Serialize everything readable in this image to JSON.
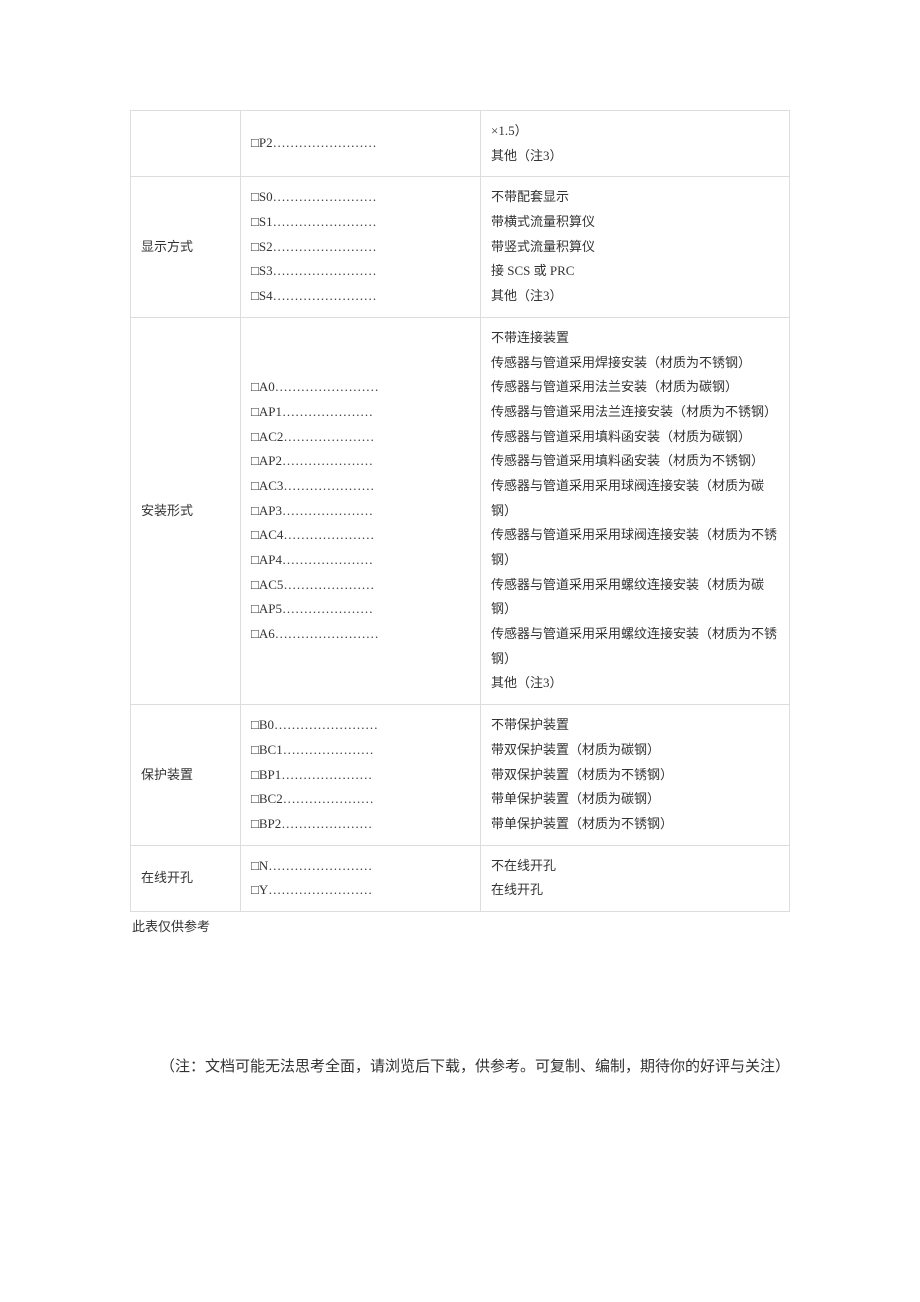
{
  "colors": {
    "border": "#dddddd",
    "text": "#333333",
    "background": "#ffffff"
  },
  "rows": [
    {
      "label": "",
      "codes": [
        "□P2……………………"
      ],
      "desc": [
        "×1.5）",
        "其他（注3）"
      ]
    },
    {
      "label": "显示方式",
      "codes": [
        "□S0……………………",
        "□S1……………………",
        "□S2……………………",
        "□S3……………………",
        "□S4……………………"
      ],
      "desc": [
        "不带配套显示",
        "带横式流量积算仪",
        "带竖式流量积算仪",
        "接 SCS 或 PRC",
        "其他（注3）"
      ]
    },
    {
      "label": "安装形式",
      "codes": [
        "□A0……………………",
        "□AP1…………………",
        "□AC2…………………",
        "□AP2…………………",
        "□AC3…………………",
        "□AP3…………………",
        "□AC4…………………",
        "□AP4…………………",
        "□AC5…………………",
        "□AP5…………………",
        "□A6……………………"
      ],
      "desc": [
        "不带连接装置",
        "传感器与管道采用焊接安装（材质为不锈钢）",
        "传感器与管道采用法兰安装（材质为碳钢）",
        "传感器与管道采用法兰连接安装（材质为不锈钢）",
        "传感器与管道采用填料函安装（材质为碳钢）",
        "传感器与管道采用填料函安装（材质为不锈钢）",
        "传感器与管道采用采用球阀连接安装（材质为碳钢）",
        "传感器与管道采用采用球阀连接安装（材质为不锈钢）",
        "传感器与管道采用采用螺纹连接安装（材质为碳钢）",
        "传感器与管道采用采用螺纹连接安装（材质为不锈钢）",
        "其他（注3）"
      ]
    },
    {
      "label": "保护装置",
      "codes": [
        "□B0……………………",
        "□BC1…………………",
        "□BP1…………………",
        "□BC2…………………",
        "□BP2…………………"
      ],
      "desc": [
        "不带保护装置",
        "带双保护装置（材质为碳钢）",
        "带双保护装置（材质为不锈钢）",
        "带单保护装置（材质为碳钢）",
        "带单保护装置（材质为不锈钢）"
      ]
    },
    {
      "label": "在线开孔",
      "codes": [
        "□N……………………",
        "□Y……………………"
      ],
      "desc": [
        "不在线开孔",
        "在线开孔"
      ]
    }
  ],
  "footnote": "此表仅供参考",
  "note": "（注：文档可能无法思考全面，请浏览后下载，供参考。可复制、编制，期待你的好评与关注）"
}
